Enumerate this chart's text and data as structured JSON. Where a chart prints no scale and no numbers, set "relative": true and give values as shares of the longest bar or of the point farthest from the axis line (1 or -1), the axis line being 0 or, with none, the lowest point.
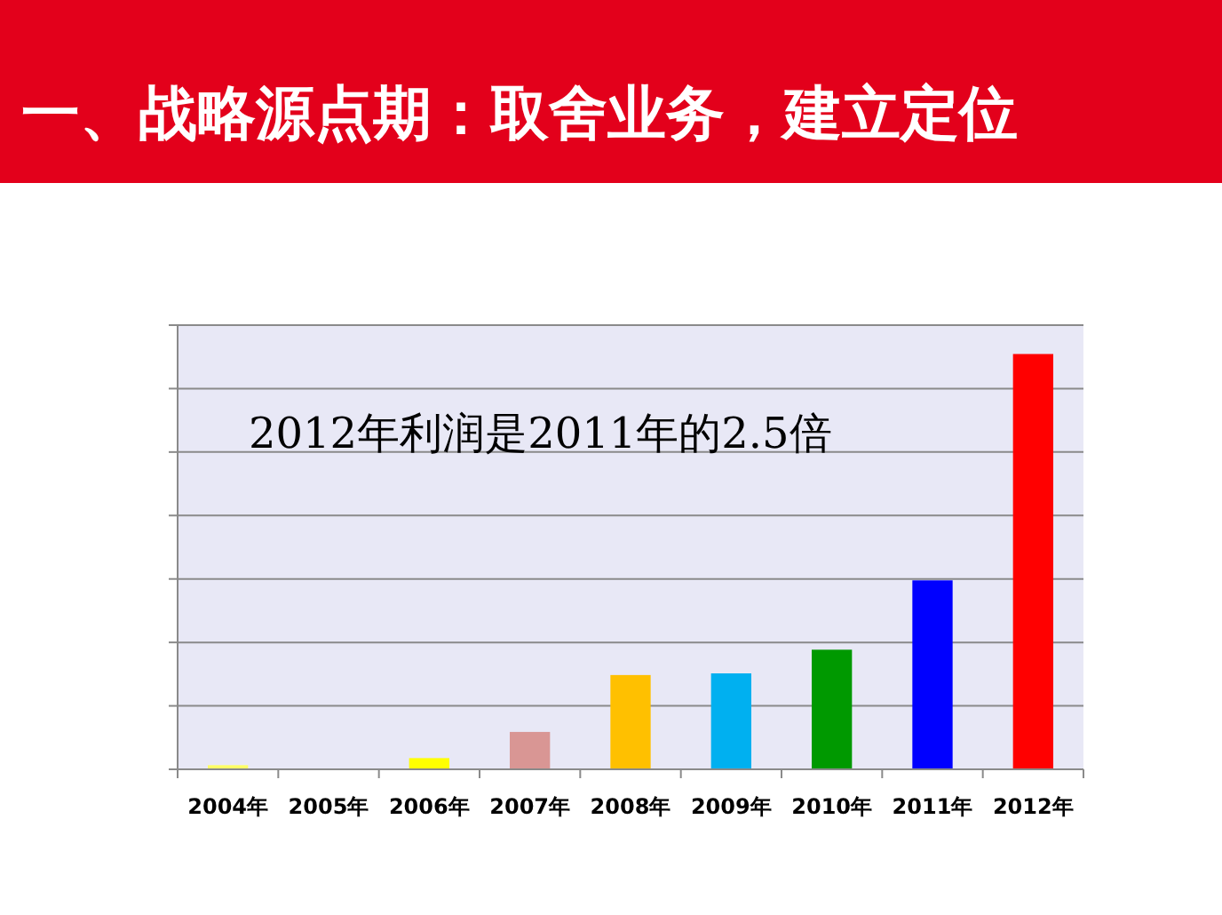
{
  "chart_data": {
    "type": "bar",
    "title": "一、战略源点期：取舍业务，建立定位",
    "categories": [
      "2004年",
      "2005年",
      "2006年",
      "2007年",
      "2008年",
      "2009年",
      "2010年",
      "2011年",
      "2012年"
    ],
    "values": [
      0.01,
      0,
      0.027,
      0.09,
      0.227,
      0.231,
      0.288,
      0.455,
      1
    ],
    "colors": [
      "#ffff66",
      "#ffff00",
      "#ffff00",
      "#d99694",
      "#ffc000",
      "#00b0f0",
      "#009900",
      "#0000ff",
      "#ff0000"
    ],
    "relative": true,
    "grid": "y",
    "annotations": [
      "2012年利润是2011年的2.5倍"
    ]
  }
}
